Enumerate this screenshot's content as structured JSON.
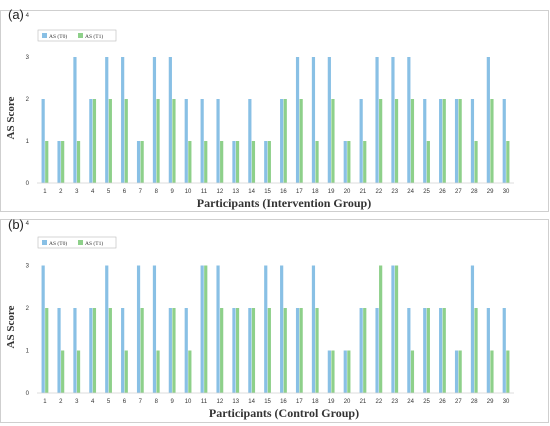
{
  "chart_data": [
    {
      "panel_label": "(a)",
      "type": "bar",
      "xlabel": "Participants (Intervention Group)",
      "ylabel": "AS Score",
      "ylim": [
        0,
        4
      ],
      "yticks": [
        0,
        1,
        2,
        3,
        4
      ],
      "legend_position": "top-left",
      "categories": [
        "1",
        "2",
        "3",
        "4",
        "5",
        "6",
        "7",
        "8",
        "9",
        "10",
        "11",
        "12",
        "13",
        "14",
        "15",
        "16",
        "17",
        "18",
        "19",
        "20",
        "21",
        "22",
        "23",
        "24",
        "25",
        "26",
        "27",
        "28",
        "29",
        "30"
      ],
      "series": [
        {
          "name": "AS (T0)",
          "color": "#89C0E5",
          "values": [
            2,
            1,
            3,
            2,
            3,
            3,
            1,
            3,
            3,
            2,
            2,
            2,
            1,
            2,
            1,
            2,
            3,
            3,
            3,
            1,
            2,
            3,
            3,
            3,
            2,
            2,
            2,
            2,
            3,
            2
          ]
        },
        {
          "name": "AS (T1)",
          "color": "#8ED08A",
          "values": [
            1,
            1,
            1,
            2,
            2,
            2,
            1,
            2,
            2,
            1,
            1,
            1,
            1,
            1,
            1,
            2,
            2,
            1,
            2,
            1,
            1,
            2,
            2,
            2,
            1,
            2,
            2,
            1,
            2,
            1
          ]
        }
      ]
    },
    {
      "panel_label": "(b)",
      "type": "bar",
      "xlabel": "Participants (Control Group)",
      "ylabel": "AS Score",
      "ylim": [
        0,
        4
      ],
      "yticks": [
        0,
        1,
        2,
        3,
        4
      ],
      "legend_position": "top-left",
      "categories": [
        "1",
        "2",
        "3",
        "4",
        "5",
        "6",
        "7",
        "8",
        "9",
        "10",
        "11",
        "12",
        "13",
        "14",
        "15",
        "16",
        "17",
        "18",
        "19",
        "20",
        "21",
        "22",
        "23",
        "24",
        "25",
        "26",
        "27",
        "28",
        "29",
        "30"
      ],
      "series": [
        {
          "name": "AS (T0)",
          "color": "#89C0E5",
          "values": [
            3,
            2,
            2,
            2,
            3,
            2,
            3,
            3,
            2,
            2,
            3,
            3,
            2,
            2,
            3,
            3,
            2,
            3,
            1,
            1,
            2,
            2,
            3,
            2,
            2,
            2,
            1,
            3,
            2,
            2
          ]
        },
        {
          "name": "AS (T1)",
          "color": "#8ED08A",
          "values": [
            2,
            1,
            1,
            2,
            2,
            1,
            2,
            1,
            2,
            1,
            3,
            2,
            2,
            2,
            2,
            2,
            2,
            2,
            1,
            1,
            2,
            3,
            3,
            1,
            2,
            2,
            1,
            2,
            1,
            1
          ]
        }
      ]
    }
  ]
}
